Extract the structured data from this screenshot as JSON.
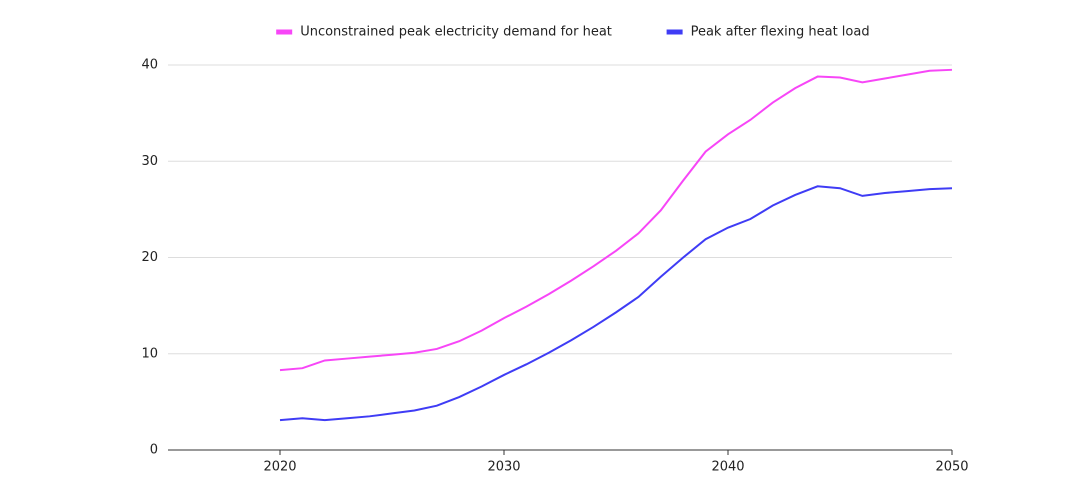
{
  "chart_data": {
    "type": "line",
    "x": [
      2020,
      2021,
      2022,
      2023,
      2024,
      2025,
      2026,
      2027,
      2028,
      2029,
      2030,
      2031,
      2032,
      2033,
      2034,
      2035,
      2036,
      2037,
      2038,
      2039,
      2040,
      2041,
      2042,
      2043,
      2044,
      2045,
      2046,
      2047,
      2048,
      2049,
      2050
    ],
    "series": [
      {
        "name": "Unconstrained peak electricity demand for heat",
        "color": "#f746f7",
        "values": [
          8.3,
          8.5,
          9.3,
          9.5,
          9.7,
          9.9,
          10.1,
          10.5,
          11.3,
          12.4,
          13.7,
          14.9,
          16.2,
          17.6,
          19.1,
          20.7,
          22.5,
          24.9,
          28.0,
          31.0,
          32.8,
          34.3,
          36.1,
          37.6,
          38.8,
          38.7,
          38.2,
          38.6,
          39.0,
          39.4,
          39.5
        ]
      },
      {
        "name": "Peak after flexing heat load",
        "color": "#3f3cf5",
        "values": [
          3.1,
          3.3,
          3.1,
          3.3,
          3.5,
          3.8,
          4.1,
          4.6,
          5.5,
          6.6,
          7.8,
          8.9,
          10.1,
          11.4,
          12.8,
          14.3,
          15.9,
          18.0,
          20.0,
          21.9,
          23.1,
          24.0,
          25.4,
          26.5,
          27.4,
          27.2,
          26.4,
          26.7,
          26.9,
          27.1,
          27.2
        ]
      }
    ],
    "xlim": [
      2015,
      2050
    ],
    "xticks": [
      2020,
      2030,
      2040,
      2050
    ],
    "ylim": [
      0,
      40
    ],
    "yticks": [
      0,
      10,
      20,
      30,
      40
    ],
    "grid": true,
    "legend": "top"
  }
}
